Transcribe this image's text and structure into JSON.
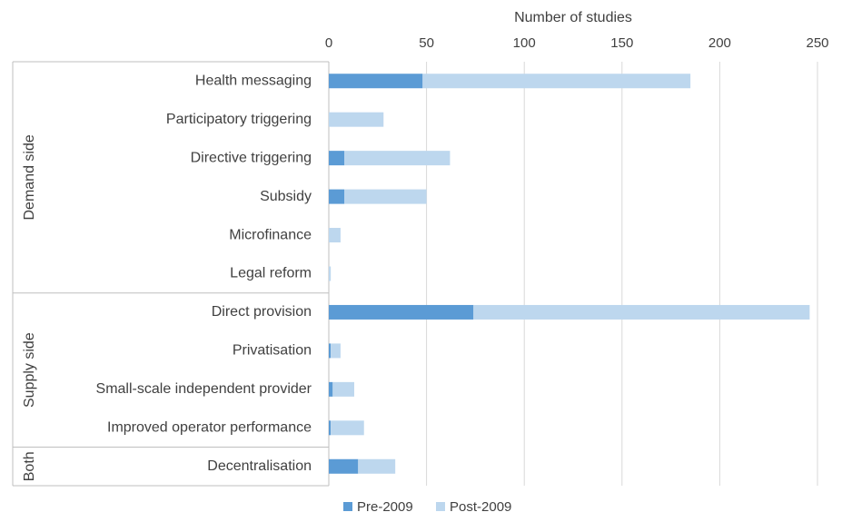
{
  "chart_data": {
    "type": "bar",
    "orientation": "horizontal",
    "stacked": true,
    "xlabel": "Number of studies",
    "xlim": [
      0,
      250
    ],
    "xticks": [
      0,
      50,
      100,
      150,
      200,
      250
    ],
    "x_axis_position": "top",
    "grid": true,
    "legend_position": "bottom",
    "groups": [
      {
        "name": "Demand side",
        "categories": [
          "Health messaging",
          "Participatory triggering",
          "Directive triggering",
          "Subsidy",
          "Microfinance",
          "Legal reform"
        ]
      },
      {
        "name": "Supply side",
        "categories": [
          "Direct provision",
          "Privatisation",
          "Small-scale independent provider",
          "Improved operator performance"
        ]
      },
      {
        "name": "Both",
        "categories": [
          "Decentralisation"
        ]
      }
    ],
    "categories": [
      "Health messaging",
      "Participatory triggering",
      "Directive triggering",
      "Subsidy",
      "Microfinance",
      "Legal reform",
      "Direct provision",
      "Privatisation",
      "Small-scale independent provider",
      "Improved operator performance",
      "Decentralisation"
    ],
    "series": [
      {
        "name": "Pre-2009",
        "color": "#5b9bd5",
        "values": [
          48,
          0,
          8,
          8,
          0,
          0,
          74,
          1,
          2,
          1,
          15
        ]
      },
      {
        "name": "Post-2009",
        "color": "#bdd7ee",
        "values": [
          137,
          28,
          54,
          42,
          6,
          1,
          172,
          5,
          11,
          17,
          19
        ]
      }
    ]
  }
}
